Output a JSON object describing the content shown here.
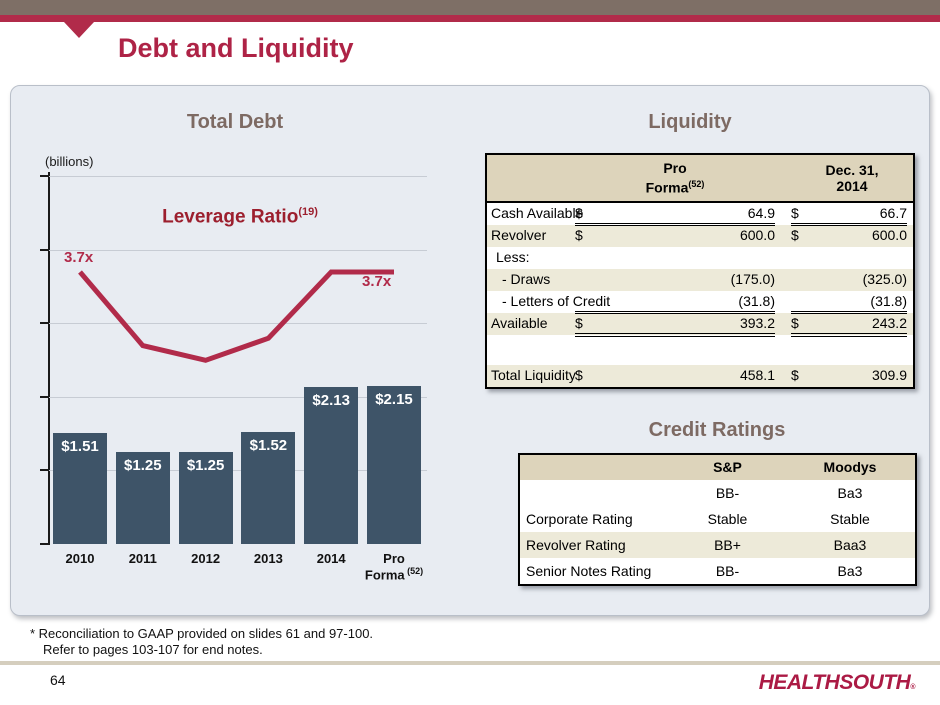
{
  "slide": {
    "title": "Debt and Liquidity",
    "page_number": "64",
    "logo_text": "HEALTHSOUTH",
    "logo_mark": "®",
    "footnote_line1": "* Reconciliation to GAAP provided on slides 61 and 97-100.",
    "footnote_line2": "Refer to pages 103-107 for end notes."
  },
  "colors": {
    "accent_crimson": "#b12b4a",
    "top_bar_brown": "#7e6f66",
    "bar_navy": "#3e5468",
    "panel_background": "#e8ecf2",
    "table_header_beige": "#ddd4bb",
    "table_row_beige": "#edead9",
    "heading_gray_brown": "#7d6a63"
  },
  "chart": {
    "title": "Total Debt",
    "units_label": "(billions)",
    "line_label": "Leverage Ratio",
    "line_label_sup": "(19)",
    "line_first_label": "3.7x",
    "line_last_label": "3.7x"
  },
  "chart_data": {
    "type": "bar",
    "title": "Total Debt",
    "ylabel": "(billions)",
    "ylim": [
      0,
      5
    ],
    "grid_step": 1,
    "categories": [
      "2010",
      "2011",
      "2012",
      "2013",
      "2014",
      "Pro Forma"
    ],
    "last_category_sup": "(52)",
    "bar_series": {
      "name": "Total Debt ($ billions)",
      "values": [
        1.51,
        1.25,
        1.25,
        1.52,
        2.13,
        2.15
      ],
      "labels": [
        "$1.51",
        "$1.25",
        "$1.25",
        "$1.52",
        "$2.13",
        "$2.15"
      ]
    },
    "line_series": {
      "name": "Leverage Ratio (19)",
      "values": [
        3.7,
        2.7,
        2.5,
        2.8,
        3.7,
        3.7
      ],
      "labeled_points": {
        "2010": "3.7x",
        "Pro Forma": "3.7x"
      }
    }
  },
  "liquidity": {
    "title": "Liquidity",
    "col1_header_line1": "Pro",
    "col1_header_line2": "Forma",
    "col1_header_sup": "(52)",
    "col2_header_line1": "Dec. 31,",
    "col2_header_line2": "2014",
    "rows": [
      {
        "label": "Cash Available",
        "d1": "$",
        "v1": "64.9",
        "d2": "$",
        "v2": "66.7"
      },
      {
        "label": "Revolver",
        "d1": "$",
        "v1": "600.0",
        "d2": "$",
        "v2": "600.0"
      },
      {
        "label": "Less:",
        "d1": "",
        "v1": "",
        "d2": "",
        "v2": ""
      },
      {
        "label": "- Draws",
        "d1": "",
        "v1": "(175.0)",
        "d2": "",
        "v2": "(325.0)"
      },
      {
        "label": "- Letters of Credit",
        "d1": "",
        "v1": "(31.8)",
        "d2": "",
        "v2": "(31.8)"
      },
      {
        "label": "Available",
        "d1": "$",
        "v1": "393.2",
        "d2": "$",
        "v2": "243.2"
      },
      {
        "label": "",
        "d1": "",
        "v1": "",
        "d2": "",
        "v2": ""
      },
      {
        "label": "Total Liquidity",
        "d1": "$",
        "v1": "458.1",
        "d2": "$",
        "v2": "309.9"
      }
    ]
  },
  "credit": {
    "title": "Credit Ratings",
    "headers": {
      "label": "",
      "col1": "S&P",
      "col2": "Moodys"
    },
    "rows": [
      {
        "label": "",
        "sp": "BB-",
        "moodys": "Ba3"
      },
      {
        "label": "Corporate Rating",
        "sp": "Stable",
        "moodys": "Stable"
      },
      {
        "label": "Revolver Rating",
        "sp": "BB+",
        "moodys": "Baa3"
      },
      {
        "label": "Senior Notes Rating",
        "sp": "BB-",
        "moodys": "Ba3"
      }
    ]
  }
}
